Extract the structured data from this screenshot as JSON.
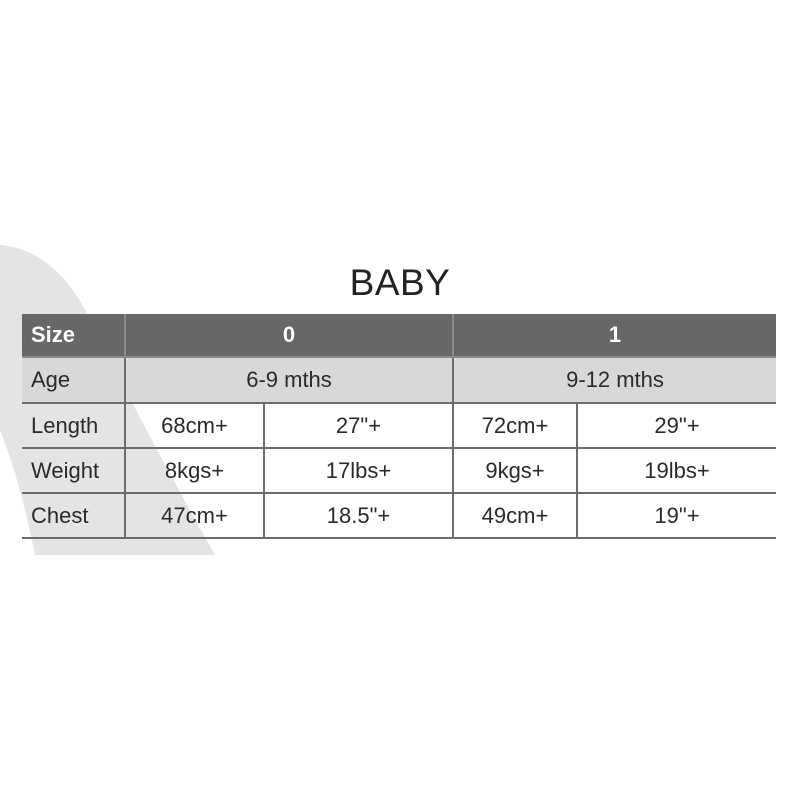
{
  "title": "BABY",
  "table": {
    "header": {
      "label": "Size",
      "sizes": [
        "0",
        "1"
      ]
    },
    "age": {
      "label": "Age",
      "values": [
        "6-9 mths",
        "9-12 mths"
      ]
    },
    "rows": [
      {
        "label": "Length",
        "values": [
          "68cm+",
          "27\"+",
          "72cm+",
          "29\"+"
        ]
      },
      {
        "label": "Weight",
        "values": [
          "8kgs+",
          "17lbs+",
          "9kgs+",
          "19lbs+"
        ]
      },
      {
        "label": "Chest",
        "values": [
          "47cm+",
          "18.5\"+",
          "49cm+",
          "19\"+"
        ]
      }
    ]
  },
  "colors": {
    "header_bg": "#67676a",
    "age_bg": "#d8d8d8",
    "swoosh": "#e4e4e4"
  }
}
